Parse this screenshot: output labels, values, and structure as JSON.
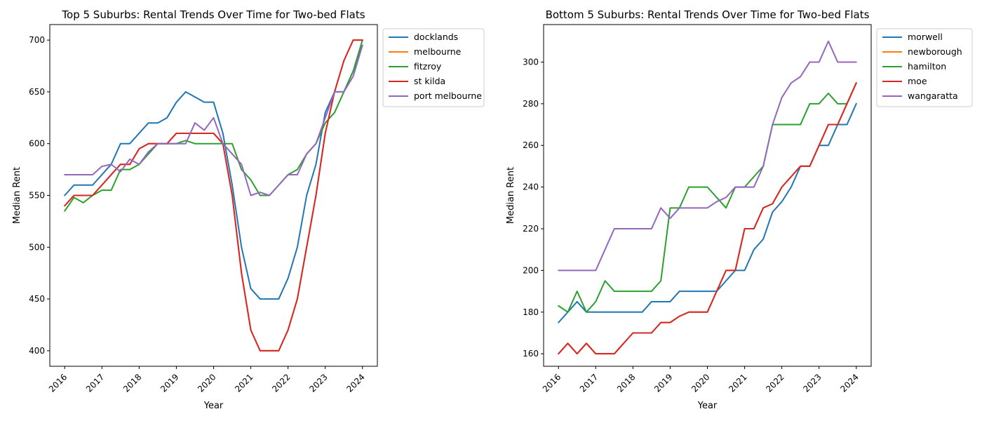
{
  "chart_data": [
    {
      "type": "line",
      "title": "Top 5 Suburbs: Rental Trends Over Time for Two-bed Flats",
      "xlabel": "Year",
      "ylabel": "Median Rent",
      "xlim": [
        2015.6,
        2024.4
      ],
      "ylim": [
        385,
        715
      ],
      "xticks": [
        "2016",
        "2017",
        "2018",
        "2019",
        "2020",
        "2021",
        "2022",
        "2023",
        "2024"
      ],
      "yticks": [
        "400",
        "450",
        "500",
        "550",
        "600",
        "650",
        "700"
      ],
      "legend": "upper-right-outside",
      "grid": false,
      "x": [
        2016,
        2016.25,
        2016.5,
        2016.75,
        2017,
        2017.25,
        2017.5,
        2017.75,
        2018,
        2018.25,
        2018.5,
        2018.75,
        2019,
        2019.25,
        2019.5,
        2019.75,
        2020,
        2020.25,
        2020.5,
        2020.75,
        2021,
        2021.25,
        2021.5,
        2021.75,
        2022,
        2022.25,
        2022.5,
        2022.75,
        2023,
        2023.25,
        2023.5,
        2023.75,
        2024
      ],
      "series": [
        {
          "name": "docklands",
          "color": "#1f77b4",
          "values": [
            550,
            560,
            560,
            560,
            570,
            580,
            600,
            600,
            610,
            620,
            620,
            625,
            640,
            650,
            645,
            640,
            640,
            610,
            560,
            500,
            460,
            450,
            450,
            450,
            470,
            500,
            550,
            580,
            630,
            650,
            650,
            670,
            695
          ]
        },
        {
          "name": "melbourne",
          "color": "#ff7f0e",
          "values": [
            540,
            550,
            550,
            550,
            560,
            570,
            580,
            580,
            595,
            600,
            600,
            600,
            610,
            610,
            610,
            610,
            610,
            600,
            550,
            475,
            420,
            400,
            400,
            400,
            420,
            450,
            500,
            550,
            610,
            650,
            680,
            700,
            700
          ]
        },
        {
          "name": "fitzroy",
          "color": "#2ca02c",
          "values": [
            535,
            548,
            543,
            550,
            555,
            555,
            575,
            575,
            580,
            590,
            600,
            600,
            600,
            603,
            600,
            600,
            600,
            600,
            600,
            575,
            565,
            550,
            550,
            560,
            570,
            575,
            590,
            600,
            620,
            630,
            650,
            670,
            700
          ]
        },
        {
          "name": "st kilda",
          "color": "#d62728",
          "values": [
            540,
            550,
            550,
            550,
            560,
            570,
            580,
            580,
            595,
            600,
            600,
            600,
            610,
            610,
            610,
            610,
            610,
            600,
            550,
            475,
            420,
            400,
            400,
            400,
            420,
            450,
            500,
            550,
            610,
            650,
            680,
            700,
            700
          ]
        },
        {
          "name": "port melbourne",
          "color": "#9467bd",
          "values": [
            570,
            570,
            570,
            570,
            578,
            580,
            573,
            585,
            580,
            592,
            600,
            600,
            600,
            600,
            620,
            613,
            625,
            600,
            590,
            580,
            550,
            553,
            550,
            560,
            570,
            570,
            590,
            600,
            625,
            650,
            650,
            665,
            695
          ]
        }
      ]
    },
    {
      "type": "line",
      "title": "Bottom 5 Suburbs: Rental Trends Over Time for Two-bed Flats",
      "xlabel": "Year",
      "ylabel": "Median Rent",
      "xlim": [
        2015.6,
        2024.4
      ],
      "ylim": [
        154,
        318
      ],
      "xticks": [
        "2016",
        "2017",
        "2018",
        "2019",
        "2020",
        "2021",
        "2022",
        "2023",
        "2024"
      ],
      "yticks": [
        "160",
        "180",
        "200",
        "220",
        "240",
        "260",
        "280",
        "300"
      ],
      "legend": "upper-right-outside",
      "grid": false,
      "x": [
        2016,
        2016.25,
        2016.5,
        2016.75,
        2017,
        2017.25,
        2017.5,
        2017.75,
        2018,
        2018.25,
        2018.5,
        2018.75,
        2019,
        2019.25,
        2019.5,
        2019.75,
        2020,
        2020.25,
        2020.5,
        2020.75,
        2021,
        2021.25,
        2021.5,
        2021.75,
        2022,
        2022.25,
        2022.5,
        2022.75,
        2023,
        2023.25,
        2023.5,
        2023.75,
        2024
      ],
      "series": [
        {
          "name": "morwell",
          "color": "#1f77b4",
          "values": [
            175,
            180,
            185,
            180,
            180,
            180,
            180,
            180,
            180,
            180,
            185,
            185,
            185,
            190,
            190,
            190,
            190,
            190,
            195,
            200,
            200,
            210,
            215,
            228,
            233,
            240,
            250,
            250,
            260,
            260,
            270,
            270,
            280
          ]
        },
        {
          "name": "newborough",
          "color": "#ff7f0e",
          "values": [
            160,
            165,
            160,
            165,
            160,
            160,
            160,
            165,
            170,
            170,
            170,
            175,
            175,
            178,
            180,
            180,
            180,
            190,
            200,
            200,
            220,
            220,
            230,
            232,
            240,
            245,
            250,
            250,
            260,
            270,
            270,
            280,
            290
          ]
        },
        {
          "name": "hamilton",
          "color": "#2ca02c",
          "values": [
            183,
            180,
            190,
            180,
            185,
            195,
            190,
            190,
            190,
            190,
            190,
            195,
            230,
            230,
            240,
            240,
            240,
            235,
            230,
            240,
            240,
            245,
            250,
            270,
            270,
            270,
            270,
            280,
            280,
            285,
            280,
            280,
            290
          ]
        },
        {
          "name": "moe",
          "color": "#d62728",
          "values": [
            160,
            165,
            160,
            165,
            160,
            160,
            160,
            165,
            170,
            170,
            170,
            175,
            175,
            178,
            180,
            180,
            180,
            190,
            200,
            200,
            220,
            220,
            230,
            232,
            240,
            245,
            250,
            250,
            260,
            270,
            270,
            280,
            290
          ]
        },
        {
          "name": "wangaratta",
          "color": "#9467bd",
          "values": [
            200,
            200,
            200,
            200,
            200,
            210,
            220,
            220,
            220,
            220,
            220,
            230,
            225,
            230,
            230,
            230,
            230,
            233,
            235,
            240,
            240,
            240,
            250,
            270,
            283,
            290,
            293,
            300,
            300,
            310,
            300,
            300,
            300
          ]
        }
      ]
    }
  ]
}
